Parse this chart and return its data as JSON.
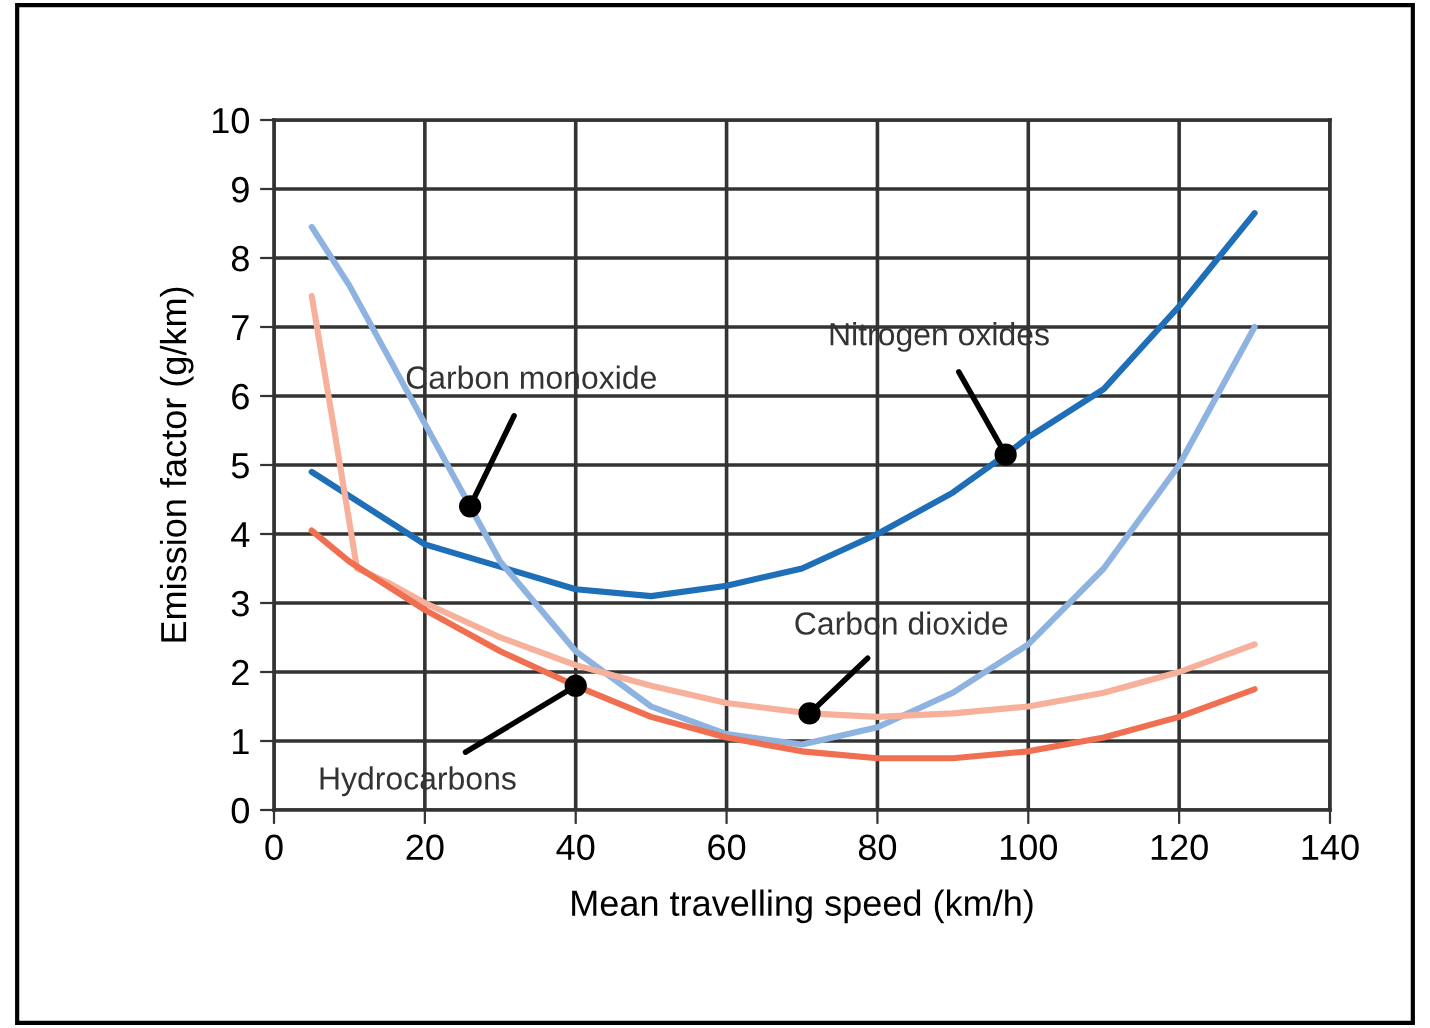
{
  "chart_data": {
    "type": "line",
    "xlabel": "Mean travelling speed (km/h)",
    "ylabel": "Emission factor (g/km)",
    "xlim": [
      0,
      140
    ],
    "xticks": [
      0,
      20,
      40,
      60,
      80,
      100,
      120,
      140
    ],
    "ylim": [
      0,
      10
    ],
    "yticks": [
      0,
      1,
      2,
      3,
      4,
      5,
      6,
      7,
      8,
      9,
      10
    ],
    "grid": true,
    "legend": false,
    "series": [
      {
        "color": "#1f6fb8",
        "x": [
          5,
          20,
          40,
          50,
          60,
          70,
          80,
          90,
          97,
          100,
          110,
          120,
          130
        ],
        "values": [
          4.9,
          3.85,
          3.2,
          3.1,
          3.25,
          3.5,
          4.0,
          4.6,
          5.15,
          5.4,
          6.1,
          7.3,
          8.65
        ]
      },
      {
        "color": "#8fb3e0",
        "x": [
          5,
          10,
          20,
          26,
          30,
          40,
          50,
          60,
          70,
          80,
          90,
          100,
          110,
          120,
          130
        ],
        "values": [
          8.45,
          7.6,
          5.6,
          4.4,
          3.6,
          2.3,
          1.5,
          1.1,
          0.95,
          1.2,
          1.7,
          2.4,
          3.5,
          5.0,
          7.0
        ]
      },
      {
        "color": "#f7b09a",
        "x": [
          5,
          8,
          11,
          15,
          20,
          30,
          40,
          50,
          60,
          71,
          80,
          90,
          100,
          110,
          120,
          130
        ],
        "values": [
          7.45,
          5.5,
          3.5,
          3.3,
          3.0,
          2.5,
          2.1,
          1.8,
          1.55,
          1.4,
          1.35,
          1.4,
          1.5,
          1.7,
          2.0,
          2.4
        ]
      },
      {
        "color": "#ef6f50",
        "x": [
          5,
          10,
          20,
          30,
          40,
          50,
          60,
          70,
          80,
          90,
          100,
          110,
          120,
          130
        ],
        "values": [
          4.05,
          3.6,
          2.9,
          2.3,
          1.8,
          1.35,
          1.05,
          0.85,
          0.75,
          0.75,
          0.85,
          1.05,
          1.35,
          1.75
        ]
      }
    ],
    "annotations": [
      {
        "text": "Carbon monoxide",
        "x": 26,
        "y": 4.4
      },
      {
        "text": "Nitrogen oxides",
        "x": 97,
        "y": 5.15
      },
      {
        "text": "Carbon dioxide",
        "x": 71,
        "y": 1.4
      },
      {
        "text": "Hydrocarbons",
        "x": 40,
        "y": 1.8
      }
    ]
  }
}
